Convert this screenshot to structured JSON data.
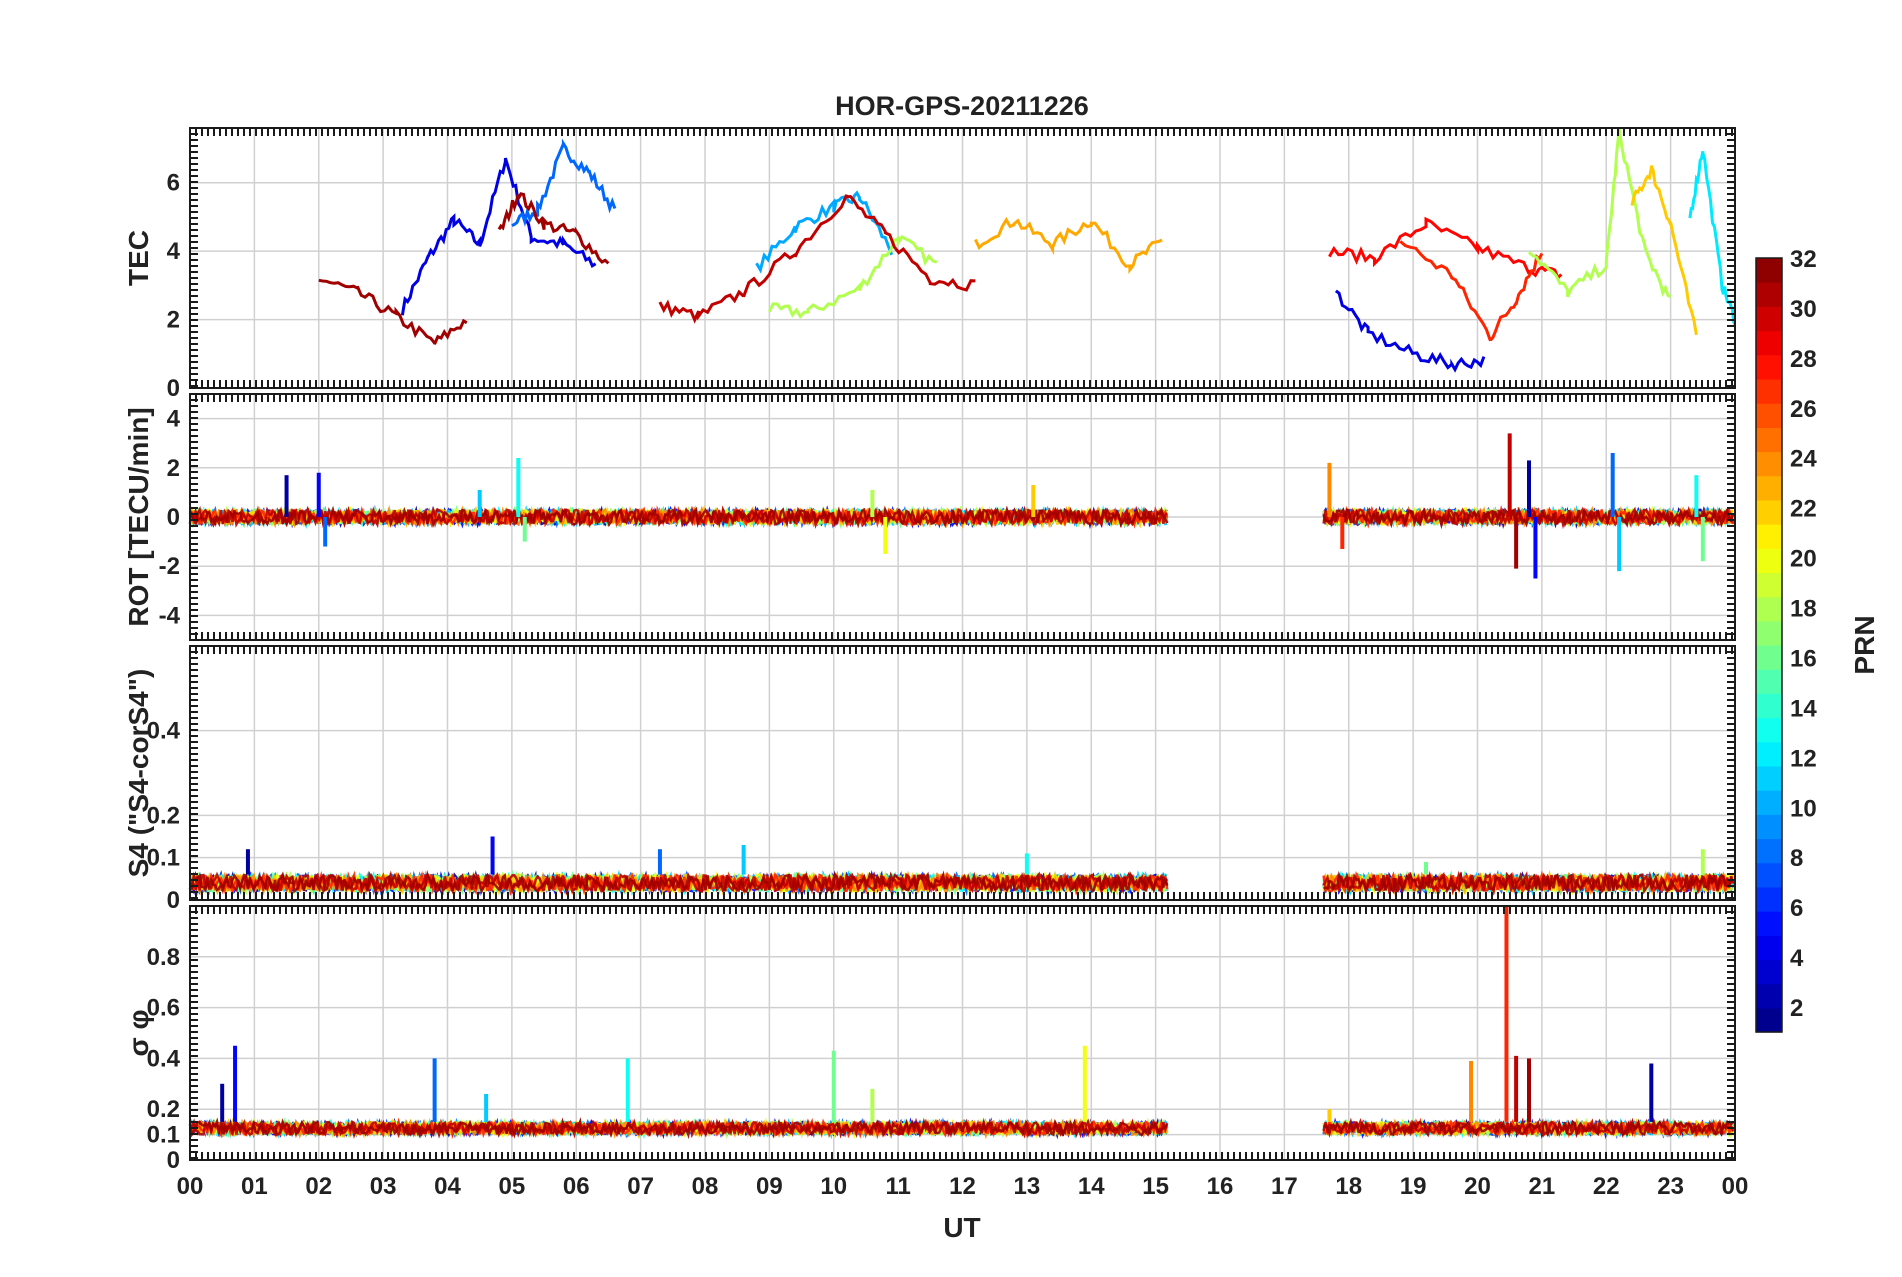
{
  "chart_data": {
    "type": "line",
    "title": "HOR-GPS-20211226",
    "xlabel": "UT",
    "x_ticks": [
      "00",
      "01",
      "02",
      "03",
      "04",
      "05",
      "06",
      "07",
      "08",
      "09",
      "10",
      "11",
      "12",
      "13",
      "14",
      "15",
      "16",
      "17",
      "18",
      "19",
      "20",
      "21",
      "22",
      "23",
      "00"
    ],
    "xlim": [
      0,
      24
    ],
    "data_gap_hours": [
      15.2,
      17.6
    ],
    "colormap": "jet",
    "colorbar": {
      "label": "PRN",
      "range": [
        1,
        32
      ],
      "ticks": [
        "2",
        "4",
        "6",
        "8",
        "10",
        "12",
        "14",
        "16",
        "18",
        "20",
        "22",
        "24",
        "26",
        "28",
        "30",
        "32"
      ],
      "placement": "right"
    },
    "grid": true,
    "panels": [
      {
        "id": "tec",
        "ylabel": "TEC",
        "ylim": [
          0,
          7.6
        ],
        "yticks": [
          "0",
          "2",
          "4",
          "6"
        ],
        "ytick_values": [
          0,
          2,
          4,
          6
        ],
        "representative_series": [
          {
            "prn": 4,
            "x": [
              3.3,
              3.7,
              4.1,
              4.5,
              4.9,
              5.3,
              5.8,
              6.3
            ],
            "y": [
              2.3,
              3.8,
              4.9,
              4.2,
              6.7,
              4.4,
              4.2,
              3.6
            ]
          },
          {
            "prn": 8,
            "x": [
              5.0,
              5.4,
              5.8,
              6.2,
              6.6
            ],
            "y": [
              4.8,
              5.2,
              7.0,
              6.3,
              5.2
            ]
          },
          {
            "prn": 10,
            "x": [
              8.8,
              9.4,
              10.0,
              10.4,
              10.9
            ],
            "y": [
              3.5,
              4.7,
              5.3,
              5.6,
              4.0
            ]
          },
          {
            "prn": 18,
            "x": [
              9.0,
              9.6,
              10.4,
              11.0,
              11.6
            ],
            "y": [
              2.3,
              2.2,
              2.9,
              4.4,
              3.6
            ]
          },
          {
            "prn": 23,
            "x": [
              12.2,
              12.8,
              13.4,
              14.0,
              14.6,
              15.1
            ],
            "y": [
              4.2,
              4.9,
              4.2,
              4.9,
              3.6,
              4.3
            ]
          },
          {
            "prn": 31,
            "x": [
              2.0,
              2.6,
              3.2,
              3.8,
              4.3
            ],
            "y": [
              3.2,
              2.8,
              2.1,
              1.3,
              2.0
            ]
          },
          {
            "prn": 31,
            "x": [
              4.8,
              5.1,
              5.5,
              6.0,
              6.5
            ],
            "y": [
              4.5,
              5.7,
              4.8,
              4.5,
              3.6
            ]
          },
          {
            "prn": 30,
            "x": [
              7.3,
              7.9,
              8.6,
              9.4,
              10.2,
              10.8,
              11.5,
              12.2
            ],
            "y": [
              2.4,
              2.1,
              2.8,
              4.0,
              5.6,
              4.5,
              3.2,
              3.0
            ]
          },
          {
            "prn": 28,
            "x": [
              17.7,
              18.4,
              19.2,
              20.0,
              20.8,
              21.3
            ],
            "y": [
              4.0,
              3.8,
              4.8,
              4.1,
              3.5,
              3.3
            ]
          },
          {
            "prn": 27,
            "x": [
              18.8,
              19.6,
              20.2,
              20.6,
              21.0
            ],
            "y": [
              4.3,
              3.3,
              1.5,
              2.6,
              4.0
            ]
          },
          {
            "prn": 18,
            "x": [
              20.8,
              21.4,
              22.0,
              22.2,
              22.6,
              23.0
            ],
            "y": [
              4.1,
              2.8,
              3.6,
              7.5,
              4.0,
              2.5
            ]
          },
          {
            "prn": 22,
            "x": [
              22.4,
              22.7,
              23.0,
              23.4
            ],
            "y": [
              5.4,
              6.4,
              4.8,
              1.5
            ]
          },
          {
            "prn": 12,
            "x": [
              23.3,
              23.5,
              23.8,
              24.0
            ],
            "y": [
              5.0,
              7.0,
              3.0,
              2.0
            ]
          },
          {
            "prn": 4,
            "x": [
              17.8,
              18.3,
              19.0,
              19.6,
              20.1
            ],
            "y": [
              2.8,
              1.6,
              1.0,
              0.7,
              0.8
            ]
          }
        ]
      },
      {
        "id": "rot",
        "ylabel": "ROT [TECU/min]",
        "ylim": [
          -5,
          5
        ],
        "yticks": [
          "-4",
          "-2",
          "0",
          "2",
          "4"
        ],
        "ytick_values": [
          -4,
          -2,
          0,
          2,
          4
        ],
        "baseline": 0,
        "spikes": [
          {
            "x": 1.5,
            "y": 1.7
          },
          {
            "x": 2.0,
            "y": 1.8
          },
          {
            "x": 2.1,
            "y": -1.2
          },
          {
            "x": 4.5,
            "y": 1.1
          },
          {
            "x": 5.1,
            "y": 2.4
          },
          {
            "x": 5.2,
            "y": -1.0
          },
          {
            "x": 10.6,
            "y": 1.1
          },
          {
            "x": 10.8,
            "y": -1.5
          },
          {
            "x": 13.1,
            "y": 1.3
          },
          {
            "x": 17.7,
            "y": 2.2
          },
          {
            "x": 17.9,
            "y": -1.3
          },
          {
            "x": 20.5,
            "y": 3.4
          },
          {
            "x": 20.6,
            "y": -2.1
          },
          {
            "x": 20.8,
            "y": 2.3
          },
          {
            "x": 20.9,
            "y": -2.5
          },
          {
            "x": 22.1,
            "y": 2.6
          },
          {
            "x": 22.2,
            "y": -2.2
          },
          {
            "x": 23.4,
            "y": 1.7
          },
          {
            "x": 23.5,
            "y": -1.8
          }
        ]
      },
      {
        "id": "s4",
        "ylabel": "S4 (\"S4-corS4\")",
        "ylim": [
          0,
          0.6
        ],
        "yticks": [
          "0",
          "0.1",
          "0.2",
          "0.4"
        ],
        "ytick_values": [
          0,
          0.1,
          0.2,
          0.4
        ],
        "typical_range": [
          0.02,
          0.06
        ],
        "peaks": [
          {
            "x": 0.9,
            "y": 0.12
          },
          {
            "x": 4.7,
            "y": 0.15
          },
          {
            "x": 7.3,
            "y": 0.12
          },
          {
            "x": 8.6,
            "y": 0.13
          },
          {
            "x": 13.0,
            "y": 0.11
          },
          {
            "x": 19.2,
            "y": 0.09
          },
          {
            "x": 23.5,
            "y": 0.12
          }
        ]
      },
      {
        "id": "sigma_phi",
        "ylabel": "σ φ",
        "ylim": [
          0,
          1.0
        ],
        "yticks": [
          "0",
          "0.1",
          "0.2",
          "0.4",
          "0.6",
          "0.8"
        ],
        "ytick_values": [
          0,
          0.1,
          0.2,
          0.4,
          0.6,
          0.8
        ],
        "typical_range": [
          0.1,
          0.15
        ],
        "peaks": [
          {
            "x": 0.5,
            "y": 0.3
          },
          {
            "x": 0.7,
            "y": 0.45
          },
          {
            "x": 3.8,
            "y": 0.4
          },
          {
            "x": 4.6,
            "y": 0.26
          },
          {
            "x": 6.8,
            "y": 0.4
          },
          {
            "x": 10.0,
            "y": 0.43
          },
          {
            "x": 10.6,
            "y": 0.28
          },
          {
            "x": 13.9,
            "y": 0.45
          },
          {
            "x": 17.7,
            "y": 0.2
          },
          {
            "x": 19.9,
            "y": 0.39
          },
          {
            "x": 20.45,
            "y": 1.0
          },
          {
            "x": 20.6,
            "y": 0.41
          },
          {
            "x": 20.8,
            "y": 0.4
          },
          {
            "x": 22.7,
            "y": 0.38
          }
        ]
      }
    ]
  }
}
